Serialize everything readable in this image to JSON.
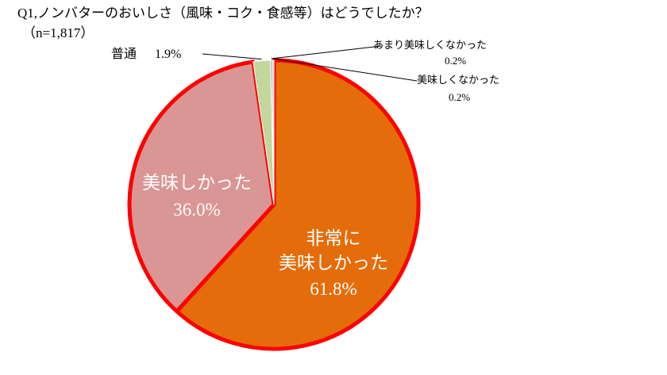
{
  "chart_data": {
    "type": "pie",
    "title": "Q1,ノンバターのおいしさ（風味・コク・食感等）はどうでしたか？",
    "subtitle": "（n=1,817）",
    "categories": [
      "非常に\n美味しかった",
      "美味しかった",
      "普通",
      "あまり美味しくなかった",
      "美味しくなかった"
    ],
    "values": [
      61.8,
      36.0,
      1.9,
      0.2,
      0.2
    ],
    "value_labels": [
      "61.8%",
      "36.0%",
      "1.9%",
      "0.2%",
      "0.2%"
    ],
    "colors": [
      "#e46c0a",
      "#d99694",
      "#c3d69b",
      "#a6a6a6",
      "#bfbfbf"
    ]
  }
}
